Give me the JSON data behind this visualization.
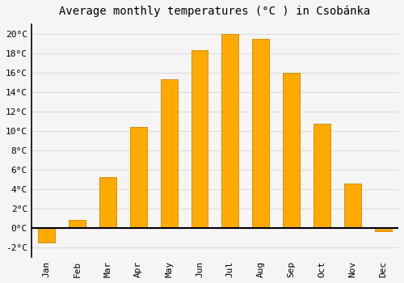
{
  "title": "Average monthly temperatures (°C ) in Csobánka",
  "months": [
    "Jan",
    "Feb",
    "Mar",
    "Apr",
    "May",
    "Jun",
    "Jul",
    "Aug",
    "Sep",
    "Oct",
    "Nov",
    "Dec"
  ],
  "values": [
    -1.5,
    0.8,
    5.2,
    10.4,
    15.3,
    18.3,
    20.0,
    19.5,
    16.0,
    10.7,
    4.6,
    -0.3
  ],
  "bar_color": "#FFAA00",
  "edge_color": "#CC8800",
  "background_color": "#f5f5f5",
  "grid_color": "#dddddd",
  "zero_line_color": "#000000",
  "yticks": [
    -2,
    0,
    2,
    4,
    6,
    8,
    10,
    12,
    14,
    16,
    18,
    20
  ],
  "ylim": [
    -3.0,
    21.0
  ],
  "title_fontsize": 10,
  "tick_fontsize": 8,
  "bar_width": 0.55
}
